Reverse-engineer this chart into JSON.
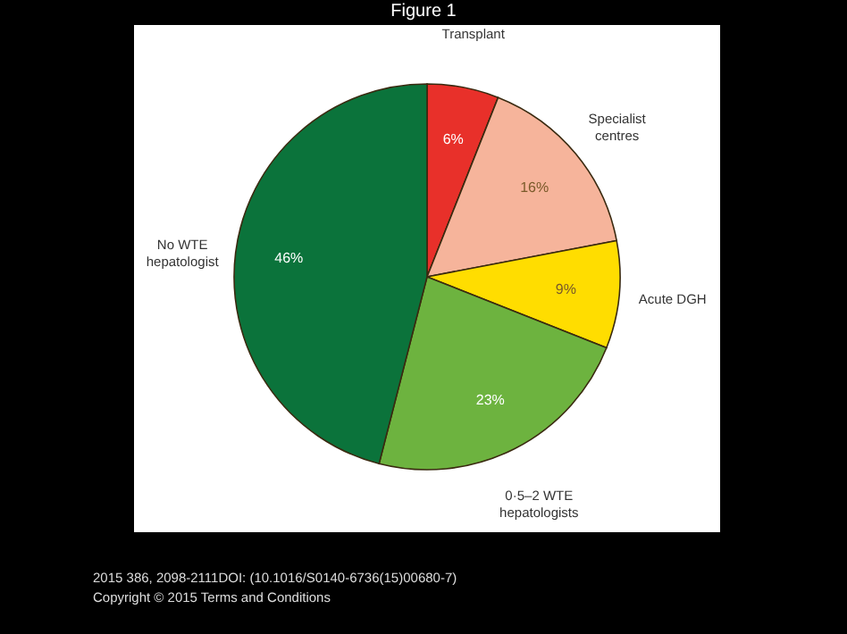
{
  "chart_data": {
    "type": "pie",
    "title": "Figure 1",
    "categories": [
      "Transplant",
      "Specialist centres",
      "Acute DGH",
      "0·5–2 WTE hepatologists",
      "No WTE hepatologist"
    ],
    "values": [
      6,
      16,
      9,
      23,
      46
    ],
    "colors": [
      "#e8302a",
      "#f6b49b",
      "#ffdd00",
      "#6db33f",
      "#0b733b"
    ],
    "value_labels": [
      "6%",
      "16%",
      "9%",
      "23%",
      "46%"
    ],
    "annotations": [
      "2015 386, 2098-2111DOI: (10.1016/S0140-6736(15)00680-7)",
      "Copyright © 2015 Terms and Conditions"
    ]
  }
}
